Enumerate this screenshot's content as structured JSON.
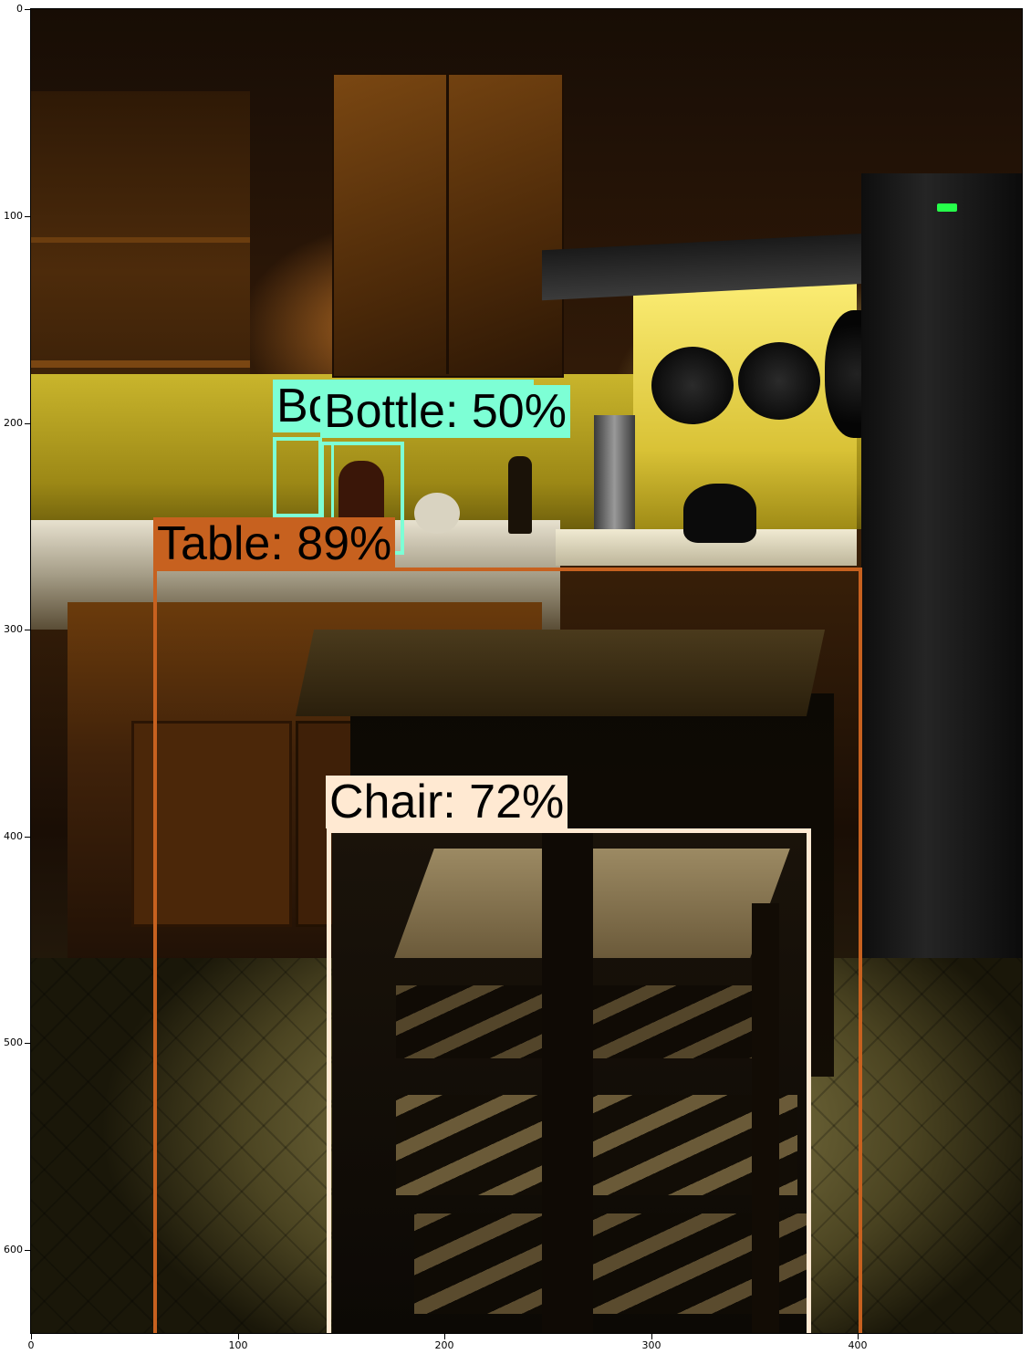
{
  "image": {
    "description_free": true
  },
  "detections": [
    {
      "id": "table",
      "label": "Table: 89%",
      "color": "#c7611f"
    },
    {
      "id": "chair",
      "label": "Chair: 72%",
      "color": "#ffe9d2"
    },
    {
      "id": "bottle_1",
      "label": "Bottle: 50%",
      "visible_text": "Bo",
      "color": "#7dffd5"
    },
    {
      "id": "bottle_2",
      "label": "Bottle: 50%",
      "color": "#7dffd5"
    }
  ],
  "axes": {
    "x_ticks": [
      "0",
      "100",
      "200",
      "300",
      "400"
    ],
    "y_ticks": [
      "0",
      "100",
      "200",
      "300",
      "400",
      "500",
      "600"
    ]
  }
}
